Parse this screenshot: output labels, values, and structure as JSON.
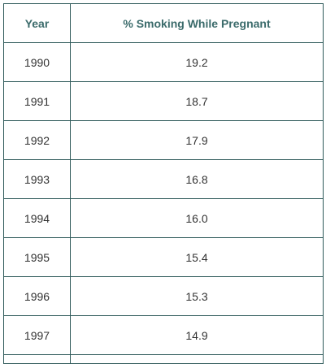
{
  "table": {
    "headers": [
      "Year",
      "% Smoking While Pregnant"
    ],
    "rows": [
      [
        "1990",
        "19.2"
      ],
      [
        "1991",
        "18.7"
      ],
      [
        "1992",
        "17.9"
      ],
      [
        "1993",
        "16.8"
      ],
      [
        "1994",
        "16.0"
      ],
      [
        "1995",
        "15.4"
      ],
      [
        "1996",
        "15.3"
      ],
      [
        "1997",
        "14.9"
      ]
    ]
  },
  "colors": {
    "border": "#2f5a5a",
    "header_text": "#3b6b6b",
    "cell_text": "#333333"
  }
}
